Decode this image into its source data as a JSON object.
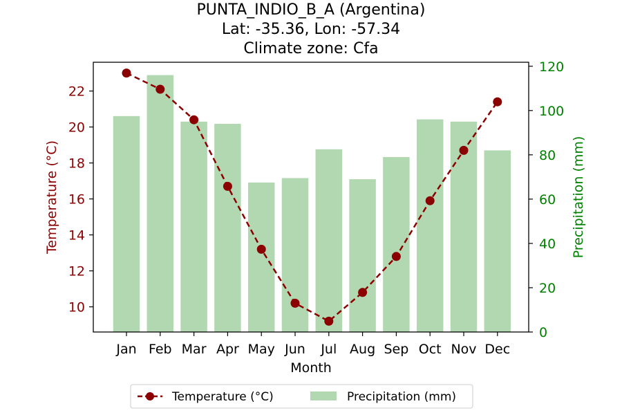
{
  "chart_data": {
    "type": "bar+line",
    "title_lines": [
      "PUNTA_INDIO_B_A (Argentina)",
      "Lat: -35.36, Lon: -57.34",
      "Climate zone: Cfa"
    ],
    "xlabel": "Month",
    "categories": [
      "Jan",
      "Feb",
      "Mar",
      "Apr",
      "May",
      "Jun",
      "Jul",
      "Aug",
      "Sep",
      "Oct",
      "Nov",
      "Dec"
    ],
    "series": [
      {
        "name": "Temperature (°C)",
        "type": "line",
        "axis": "left",
        "color": "#8b0000",
        "style": "dashed",
        "marker": "circle",
        "values": [
          23.0,
          22.1,
          20.4,
          16.7,
          13.2,
          10.2,
          9.2,
          10.8,
          12.8,
          15.9,
          18.7,
          21.4
        ]
      },
      {
        "name": "Precipitation (mm)",
        "type": "bar",
        "axis": "right",
        "color": "#b2d8b2",
        "values": [
          97.5,
          116.0,
          95.0,
          94.0,
          67.5,
          69.5,
          82.5,
          69.0,
          79.0,
          96.0,
          95.0,
          82.0
        ]
      }
    ],
    "y_left": {
      "label": "Temperature (°C)",
      "color": "#8b0000",
      "lim": [
        8.6,
        23.6
      ],
      "ticks": [
        10,
        12,
        14,
        16,
        18,
        20,
        22
      ]
    },
    "y_right": {
      "label": "Precipitation (mm)",
      "color": "#008000",
      "lim": [
        0,
        121.8
      ],
      "ticks": [
        0,
        20,
        40,
        60,
        80,
        100,
        120
      ]
    },
    "grid": false,
    "legend": {
      "placement": "bottom-center",
      "entries": [
        "Temperature (°C)",
        "Precipitation (mm)"
      ]
    }
  }
}
